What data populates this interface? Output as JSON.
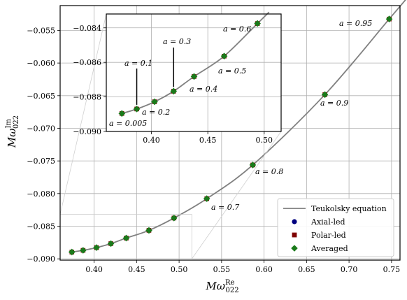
{
  "chart_data": {
    "type": "scatter",
    "xlabel": "Mω",
    "xlabel_sup": "Re",
    "xlabel_sub": "022",
    "ylabel": "Mω",
    "ylabel_sup": "Im",
    "ylabel_sub": "022",
    "xlim": [
      0.36,
      0.76
    ],
    "ylim": [
      -0.0902,
      -0.0512
    ],
    "xticks": [
      0.4,
      0.45,
      0.5,
      0.55,
      0.6,
      0.65,
      0.7,
      0.75
    ],
    "xtick_labels": [
      "0.40",
      "0.45",
      "0.50",
      "0.55",
      "0.60",
      "0.65",
      "0.70",
      "0.75"
    ],
    "yticks": [
      -0.09,
      -0.085,
      -0.08,
      -0.075,
      -0.07,
      -0.065,
      -0.06,
      -0.055
    ],
    "ytick_labels": [
      "−0.090",
      "−0.085",
      "−0.080",
      "−0.075",
      "−0.070",
      "−0.065",
      "−0.060",
      "−0.055"
    ],
    "grid": true,
    "legend_position": "bottom-right",
    "series": [
      {
        "name": "Teukolsky equation",
        "kind": "line",
        "color": "#808080"
      },
      {
        "name": "Axial-led",
        "kind": "marker",
        "marker": "circle",
        "color": "#00007f"
      },
      {
        "name": "Polar-led",
        "kind": "marker",
        "marker": "square",
        "color": "#7f0000"
      },
      {
        "name": "Averaged",
        "kind": "marker",
        "marker": "diamond",
        "color": "#1a7a1a"
      }
    ],
    "points": [
      {
        "a": 0.005,
        "x": 0.3738,
        "y": -0.08896
      },
      {
        "a": 0.1,
        "x": 0.387,
        "y": -0.0887
      },
      {
        "a": 0.2,
        "x": 0.4028,
        "y": -0.08828
      },
      {
        "a": 0.3,
        "x": 0.4197,
        "y": -0.08767
      },
      {
        "a": 0.4,
        "x": 0.4378,
        "y": -0.08682
      },
      {
        "a": 0.5,
        "x": 0.4645,
        "y": -0.08564
      },
      {
        "a": 0.6,
        "x": 0.494,
        "y": -0.08375
      },
      {
        "a": 0.7,
        "x": 0.5326,
        "y": -0.08078
      },
      {
        "a": 0.8,
        "x": 0.5867,
        "y": -0.07562
      },
      {
        "a": 0.9,
        "x": 0.6716,
        "y": -0.06484
      },
      {
        "a": 0.95,
        "x": 0.7473,
        "y": -0.05326
      }
    ],
    "main_labels": [
      {
        "a": 0.7,
        "text": "a = 0.7"
      },
      {
        "a": 0.8,
        "text": "a = 0.8"
      },
      {
        "a": 0.9,
        "text": "a = 0.9"
      },
      {
        "a": 0.95,
        "text": "a = 0.95"
      }
    ],
    "inset": {
      "xlim": [
        0.36,
        0.515
      ],
      "ylim": [
        -0.09,
        -0.0832
      ],
      "xticks": [
        0.35,
        0.4,
        0.45,
        0.5
      ],
      "xtick_labels": [
        "",
        "0.40",
        "0.45",
        "0.50"
      ],
      "yticks": [
        -0.09,
        -0.088,
        -0.086,
        -0.084
      ],
      "ytick_labels": [
        "−0.090",
        "−0.088",
        "−0.086",
        "−0.084"
      ],
      "labels": [
        {
          "a": 0.005,
          "text": "a = 0.005"
        },
        {
          "a": 0.1,
          "text": "a = 0.1"
        },
        {
          "a": 0.2,
          "text": "a = 0.2"
        },
        {
          "a": 0.3,
          "text": "a = 0.3"
        },
        {
          "a": 0.4,
          "text": "a = 0.4"
        },
        {
          "a": 0.5,
          "text": "a = 0.5"
        },
        {
          "a": 0.6,
          "text": "a = 0.6"
        }
      ]
    }
  }
}
